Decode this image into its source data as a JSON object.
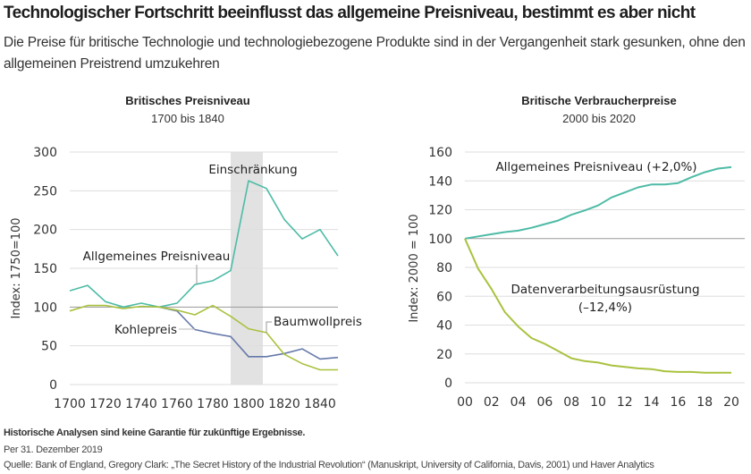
{
  "header": {
    "title": "Technologischer Fortschritt beeinflusst das allgemeine Preisniveau, bestimmt es aber nicht",
    "subtitle": "Die Preise für britische Technologie und technologiebezogene Produkte sind in der Vergangenheit stark gesunken, ohne den allgemeinen Preistrend umzukehren"
  },
  "colors": {
    "teal": "#4dbba6",
    "green": "#a9c23f",
    "blue": "#6679ab",
    "grid": "#dedede",
    "baseline": "#9a9a9a",
    "shade": "#e2e2e2"
  },
  "chart_data": [
    {
      "type": "line",
      "title": "Britisches Preisniveau",
      "subtitle": "1700 bis 1840",
      "xlabel": "",
      "ylabel": "Index: 1750=100",
      "xlim": [
        1700,
        1850
      ],
      "ylim": [
        0,
        300
      ],
      "grid": true,
      "x_ticks": [
        "1700",
        "1720",
        "1740",
        "1760",
        "1780",
        "1800",
        "1820",
        "1840"
      ],
      "y_ticks": [
        "0",
        "50",
        "100",
        "150",
        "200",
        "250",
        "300"
      ],
      "shaded_region": {
        "x": [
          1790,
          1808
        ],
        "label": "Einschränkung"
      },
      "x": [
        1700,
        1710,
        1720,
        1730,
        1740,
        1750,
        1760,
        1770,
        1780,
        1790,
        1800,
        1810,
        1820,
        1830,
        1840,
        1850
      ],
      "series": [
        {
          "name": "Allgemeines Preisniveau",
          "color_key": "teal",
          "values": [
            121,
            128,
            107,
            100,
            105,
            100,
            105,
            129,
            134,
            147,
            263,
            253,
            213,
            188,
            200,
            166
          ]
        },
        {
          "name": "Kohlepreis",
          "color_key": "blue",
          "values": [
            null,
            null,
            null,
            null,
            null,
            100,
            95,
            71,
            66,
            62,
            36,
            36,
            40,
            46,
            33,
            35
          ]
        },
        {
          "name": "Baumwollpreis",
          "color_key": "green",
          "values": [
            95,
            102,
            102,
            98,
            101,
            100,
            96,
            90,
            102,
            88,
            72,
            67,
            39,
            27,
            19,
            19
          ]
        }
      ],
      "annotations": [
        "Allgemeines Preisniveau",
        "Kohlepreis",
        "Baumwollpreis",
        "Einschränkung"
      ]
    },
    {
      "type": "line",
      "title": "Britische Verbraucherpreise",
      "subtitle": "2000 bis 2020",
      "xlabel": "",
      "ylabel": "Index: 2000 = 100",
      "xlim": [
        2000,
        2020
      ],
      "ylim": [
        0,
        160
      ],
      "grid": true,
      "x_ticks": [
        "00",
        "02",
        "04",
        "06",
        "08",
        "10",
        "12",
        "14",
        "16",
        "18",
        "20"
      ],
      "y_ticks": [
        "0",
        "20",
        "40",
        "60",
        "80",
        "100",
        "120",
        "140",
        "160"
      ],
      "x": [
        2000,
        2001,
        2002,
        2003,
        2004,
        2005,
        2006,
        2007,
        2008,
        2009,
        2010,
        2011,
        2012,
        2013,
        2014,
        2015,
        2016,
        2017,
        2018,
        2019,
        2020
      ],
      "series": [
        {
          "name": "Allgemeines Preisniveau (+2,0%)",
          "color_key": "teal",
          "values": [
            100,
            101.5,
            103,
            104.5,
            105.5,
            107.5,
            110,
            112.5,
            116.5,
            119.5,
            123,
            128.5,
            132,
            135.5,
            137.5,
            137.5,
            138.5,
            142.5,
            146,
            148.5,
            149.5
          ]
        },
        {
          "name": "Datenverarbeitungsausrüstung (–12,4%)",
          "color_key": "green",
          "values": [
            100,
            79,
            65,
            49,
            39,
            31,
            27,
            22,
            17,
            15,
            14,
            12,
            11,
            10,
            9.5,
            8,
            7.5,
            7.5,
            7,
            7,
            7
          ]
        }
      ],
      "annotations": [
        "Allgemeines Preisniveau (+2,0%)",
        "Datenverarbeitungsausrüstung",
        "(–12,4%)"
      ]
    }
  ],
  "labels": {
    "left_label_general": "Allgemeines Preisniveau",
    "left_label_coal": "Kohlepreis",
    "left_label_cotton": "Baumwollpreis",
    "left_label_restriction": "Einschränkung",
    "right_label_general": "Allgemeines Preisniveau (+2,0%)",
    "right_label_data_1": "Datenverarbeitungsausrüstung",
    "right_label_data_2": "(–12,4%)"
  },
  "footer": {
    "disclaimer": "Historische Analysen sind keine Garantie für zukünftige Ergebnisse.",
    "date": "Per 31. Dezember 2019",
    "source": "Quelle: Bank of England, Gregory Clark: „The Secret History of the Industrial Revolution“ (Manuskript, University of California, Davis, 2001) und Haver Analytics"
  }
}
